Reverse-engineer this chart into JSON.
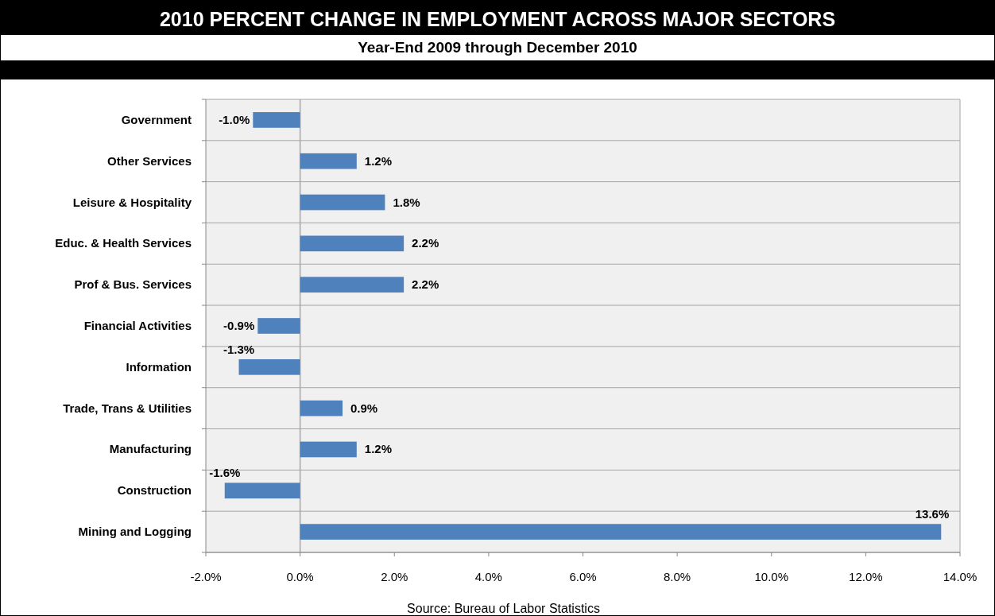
{
  "chart_data": {
    "type": "bar",
    "orientation": "horizontal",
    "title": "2010 PERCENT CHANGE IN EMPLOYMENT ACROSS MAJOR SECTORS",
    "subtitle": "Year-End 2009 through December 2010",
    "categories": [
      "Government",
      "Other Services",
      "Leisure & Hospitality",
      "Educ. & Health Services",
      "Prof & Bus. Services",
      "Financial Activities",
      "Information",
      "Trade, Trans & Utilities",
      "Manufacturing",
      "Construction",
      "Mining and Logging"
    ],
    "values": [
      -1.0,
      1.2,
      1.8,
      2.2,
      2.2,
      -0.9,
      -1.3,
      0.9,
      1.2,
      -1.6,
      13.6
    ],
    "value_labels": [
      "-1.0%",
      "1.2%",
      "1.8%",
      "2.2%",
      "2.2%",
      "-0.9%",
      "-1.3%",
      "0.9%",
      "1.2%",
      "-1.6%",
      "13.6%"
    ],
    "color": "#4f81bd",
    "xlim": [
      -2,
      14
    ],
    "xticks": [
      {
        "value": -2,
        "label": "-2.0%"
      },
      {
        "value": 0,
        "label": "0.0%"
      },
      {
        "value": 2,
        "label": "2.0%"
      },
      {
        "value": 4,
        "label": "4.0%"
      },
      {
        "value": 6,
        "label": "6.0%"
      },
      {
        "value": 8,
        "label": "8.0%"
      },
      {
        "value": 10,
        "label": "10.0%"
      },
      {
        "value": 12,
        "label": "12.0%"
      },
      {
        "value": 14,
        "label": "14.0%"
      }
    ],
    "grid": "y",
    "annotations": [
      "Source: Bureau of Labor Statistics"
    ]
  }
}
